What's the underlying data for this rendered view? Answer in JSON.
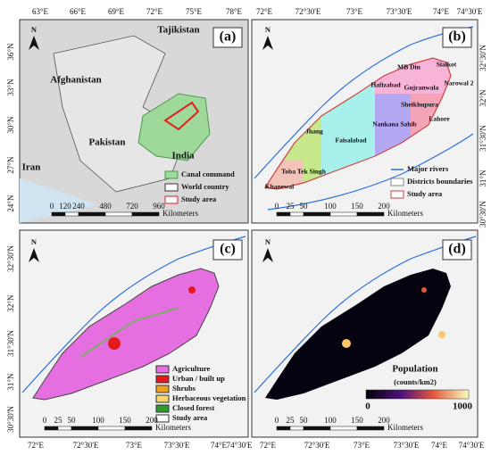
{
  "panel_a": {
    "label": "(a)",
    "north": "N",
    "lon_labels": [
      "63°E",
      "66°E",
      "69°E",
      "72°E",
      "75°E",
      "78°E"
    ],
    "lat_labels": [
      "36°N",
      "33°N",
      "30°N",
      "27°N",
      "24°N"
    ],
    "countries": [
      "Tajikistan",
      "Afghanistan",
      "Pakistan",
      "India",
      "Iran"
    ],
    "legend": [
      "Canal command",
      "World country",
      "Study area"
    ],
    "scale_ticks": [
      "0",
      "120",
      "240",
      "480",
      "720",
      "960"
    ],
    "scale_unit": "Kilometers"
  },
  "panel_b": {
    "label": "(b)",
    "north": "N",
    "lon_labels": [
      "72°E",
      "72°30'E",
      "73°E",
      "73°30'E",
      "74°E",
      "74°30'E"
    ],
    "lat_labels": [
      "32°30'N",
      "32°N",
      "31°30'N",
      "31°N",
      "30°30'N"
    ],
    "districts": [
      "MB Din",
      "Sialkot",
      "Hafizabad",
      "Gujranwala",
      "Narowal 2",
      "Sheikhupura",
      "Jhang",
      "Nankana Sahib",
      "Lahore",
      "Faisalabad",
      "Toba Tek Singh",
      "Khanewal"
    ],
    "legend": [
      "Major rivers",
      "Districts boundaries",
      "Study area"
    ],
    "scale_ticks": [
      "0",
      "25",
      "50",
      "100",
      "150",
      "200"
    ],
    "scale_unit": "Kilometers"
  },
  "panel_c": {
    "label": "(c)",
    "north": "N",
    "lat_labels": [
      "32°30'N",
      "32°N",
      "31°30'N",
      "31°N",
      "30°30'N"
    ],
    "lon_labels": [
      "72°E",
      "72°30'E",
      "73°E",
      "73°30'E",
      "74°E",
      "74°30'E"
    ],
    "legend": [
      "Agriculture",
      "Urban / built up",
      "Shrubs",
      "Herbaceous vegetation",
      "Closed forest",
      "Study area"
    ],
    "scale_ticks": [
      "0",
      "25",
      "50",
      "100",
      "150",
      "200"
    ],
    "scale_unit": "Kilometers"
  },
  "panel_d": {
    "label": "(d)",
    "north": "N",
    "lon_labels": [
      "72°E",
      "72°30'E",
      "73°E",
      "73°30'E",
      "74°E",
      "74°30'E"
    ],
    "colorbar_title": "Population",
    "colorbar_unit": "(counts/km2)",
    "colorbar_min": "0",
    "colorbar_max": "1000",
    "scale_ticks": [
      "0",
      "25",
      "50",
      "100",
      "150",
      "200"
    ],
    "scale_unit": "Kilometers"
  }
}
